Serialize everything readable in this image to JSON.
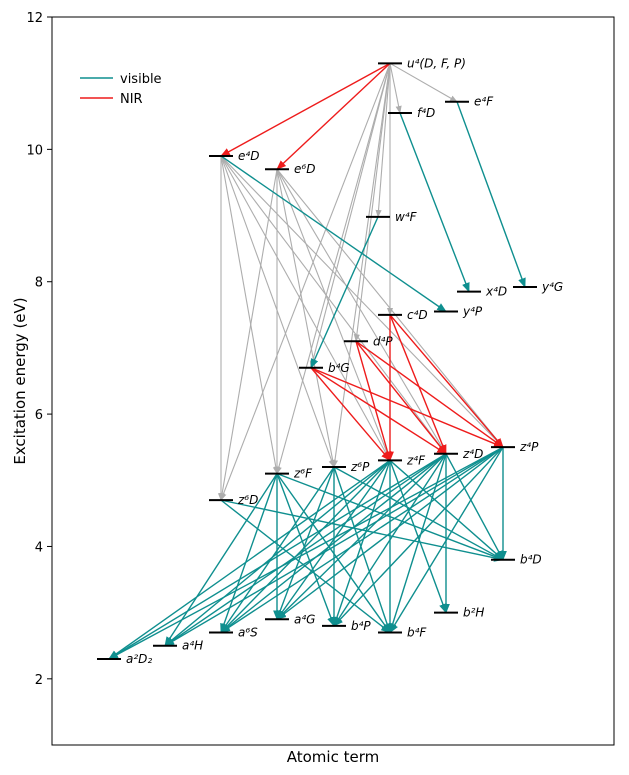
{
  "chart_data": {
    "type": "energy-level diagram",
    "xlabel": "Atomic term",
    "ylabel": "Excitation energy (eV)",
    "ylim": [
      1,
      12
    ],
    "yticks": [
      "2",
      "4",
      "6",
      "8",
      "10",
      "12"
    ],
    "legend": {
      "placement": "top-left",
      "entries": [
        {
          "label": "visible",
          "color": "#0f8f8f"
        },
        {
          "label": "NIR",
          "color": "#ee1c1c"
        }
      ]
    },
    "colors": {
      "visible": "#0f8f8f",
      "NIR": "#ee1c1c",
      "other": "#adadad",
      "level": "#000000"
    },
    "levels": [
      {
        "id": "u4DFP",
        "label": "u⁴(D, F, P)",
        "energy": 11.3
      },
      {
        "id": "e4F",
        "label": "e⁴F",
        "energy": 10.72
      },
      {
        "id": "f4D",
        "label": "f⁴D",
        "energy": 10.55
      },
      {
        "id": "e4D",
        "label": "e⁴D",
        "energy": 9.9
      },
      {
        "id": "e6D",
        "label": "e⁶D",
        "energy": 9.7
      },
      {
        "id": "w4F",
        "label": "w⁴F",
        "energy": 8.98
      },
      {
        "id": "y4G",
        "label": "y⁴G",
        "energy": 7.92
      },
      {
        "id": "x4D",
        "label": "x⁴D",
        "energy": 7.85
      },
      {
        "id": "y4P",
        "label": "y⁴P",
        "energy": 7.55
      },
      {
        "id": "c4D",
        "label": "c⁴D",
        "energy": 7.5
      },
      {
        "id": "d4P",
        "label": "d⁴P",
        "energy": 7.1
      },
      {
        "id": "b4G",
        "label": "b⁴G",
        "energy": 6.7
      },
      {
        "id": "z4P",
        "label": "z⁴P",
        "energy": 5.5
      },
      {
        "id": "z4D",
        "label": "z⁴D",
        "energy": 5.4
      },
      {
        "id": "z4F",
        "label": "z⁴F",
        "energy": 5.3
      },
      {
        "id": "z6P",
        "label": "z⁶P",
        "energy": 5.2
      },
      {
        "id": "z6F",
        "label": "z⁶F",
        "energy": 5.1
      },
      {
        "id": "z6D",
        "label": "z⁶D",
        "energy": 4.7
      },
      {
        "id": "b4D",
        "label": "b⁴D",
        "energy": 3.8
      },
      {
        "id": "b2H",
        "label": "b²H",
        "energy": 3.0
      },
      {
        "id": "a4G",
        "label": "a⁴G",
        "energy": 2.9
      },
      {
        "id": "b4P",
        "label": "b⁴P",
        "energy": 2.8
      },
      {
        "id": "b4F",
        "label": "b⁴F",
        "energy": 2.7
      },
      {
        "id": "a6S",
        "label": "a⁶S",
        "energy": 2.7
      },
      {
        "id": "a4H",
        "label": "a⁴H",
        "energy": 2.5
      },
      {
        "id": "a2D2",
        "label": "a²D₂",
        "energy": 2.3
      }
    ],
    "transitions": [
      {
        "from": "u4DFP",
        "to": "e4D",
        "kind": "NIR"
      },
      {
        "from": "u4DFP",
        "to": "e6D",
        "kind": "NIR"
      },
      {
        "from": "u4DFP",
        "to": "e4F",
        "kind": "other"
      },
      {
        "from": "u4DFP",
        "to": "f4D",
        "kind": "other"
      },
      {
        "from": "u4DFP",
        "to": "w4F",
        "kind": "other"
      },
      {
        "from": "u4DFP",
        "to": "c4D",
        "kind": "other"
      },
      {
        "from": "u4DFP",
        "to": "d4P",
        "kind": "other"
      },
      {
        "from": "u4DFP",
        "to": "b4G",
        "kind": "other"
      },
      {
        "from": "u4DFP",
        "to": "z6F",
        "kind": "other"
      },
      {
        "from": "u4DFP",
        "to": "z6P",
        "kind": "other"
      },
      {
        "from": "u4DFP",
        "to": "z6D",
        "kind": "other"
      },
      {
        "from": "e4F",
        "to": "y4G",
        "kind": "visible"
      },
      {
        "from": "f4D",
        "to": "x4D",
        "kind": "visible"
      },
      {
        "from": "e4D",
        "to": "y4P",
        "kind": "visible"
      },
      {
        "from": "e4D",
        "to": "z6D",
        "kind": "other"
      },
      {
        "from": "e4D",
        "to": "z6F",
        "kind": "other"
      },
      {
        "from": "e4D",
        "to": "z6P",
        "kind": "other"
      },
      {
        "from": "e4D",
        "to": "z4F",
        "kind": "other"
      },
      {
        "from": "e4D",
        "to": "z4D",
        "kind": "other"
      },
      {
        "from": "e4D",
        "to": "z4P",
        "kind": "other"
      },
      {
        "from": "e6D",
        "to": "z6D",
        "kind": "other"
      },
      {
        "from": "e6D",
        "to": "z6F",
        "kind": "other"
      },
      {
        "from": "e6D",
        "to": "z6P",
        "kind": "other"
      },
      {
        "from": "e6D",
        "to": "z4F",
        "kind": "other"
      },
      {
        "from": "e6D",
        "to": "z4D",
        "kind": "other"
      },
      {
        "from": "e6D",
        "to": "z4P",
        "kind": "other"
      },
      {
        "from": "w4F",
        "to": "b4G",
        "kind": "visible"
      },
      {
        "from": "c4D",
        "to": "z4F",
        "kind": "NIR"
      },
      {
        "from": "c4D",
        "to": "z4D",
        "kind": "NIR"
      },
      {
        "from": "c4D",
        "to": "z4P",
        "kind": "NIR"
      },
      {
        "from": "d4P",
        "to": "z4F",
        "kind": "NIR"
      },
      {
        "from": "d4P",
        "to": "z4D",
        "kind": "NIR"
      },
      {
        "from": "d4P",
        "to": "z4P",
        "kind": "NIR"
      },
      {
        "from": "b4G",
        "to": "z4F",
        "kind": "NIR"
      },
      {
        "from": "b4G",
        "to": "z4D",
        "kind": "NIR"
      },
      {
        "from": "b4G",
        "to": "z4P",
        "kind": "NIR"
      },
      {
        "from": "z4P",
        "to": "b4D",
        "kind": "visible"
      },
      {
        "from": "z4P",
        "to": "b4P",
        "kind": "visible"
      },
      {
        "from": "z4P",
        "to": "b4F",
        "kind": "visible"
      },
      {
        "from": "z4P",
        "to": "a4G",
        "kind": "visible"
      },
      {
        "from": "z4P",
        "to": "a6S",
        "kind": "visible"
      },
      {
        "from": "z4P",
        "to": "a4H",
        "kind": "visible"
      },
      {
        "from": "z4P",
        "to": "a2D2",
        "kind": "visible"
      },
      {
        "from": "z4D",
        "to": "b4D",
        "kind": "visible"
      },
      {
        "from": "z4D",
        "to": "b2H",
        "kind": "visible"
      },
      {
        "from": "z4D",
        "to": "b4F",
        "kind": "visible"
      },
      {
        "from": "z4D",
        "to": "b4P",
        "kind": "visible"
      },
      {
        "from": "z4D",
        "to": "a4G",
        "kind": "visible"
      },
      {
        "from": "z4D",
        "to": "a6S",
        "kind": "visible"
      },
      {
        "from": "z4D",
        "to": "a4H",
        "kind": "visible"
      },
      {
        "from": "z4D",
        "to": "a2D2",
        "kind": "visible"
      },
      {
        "from": "z4F",
        "to": "b4D",
        "kind": "visible"
      },
      {
        "from": "z4F",
        "to": "b2H",
        "kind": "visible"
      },
      {
        "from": "z4F",
        "to": "b4F",
        "kind": "visible"
      },
      {
        "from": "z4F",
        "to": "b4P",
        "kind": "visible"
      },
      {
        "from": "z4F",
        "to": "a4G",
        "kind": "visible"
      },
      {
        "from": "z4F",
        "to": "a6S",
        "kind": "visible"
      },
      {
        "from": "z4F",
        "to": "a4H",
        "kind": "visible"
      },
      {
        "from": "z4F",
        "to": "a2D2",
        "kind": "visible"
      },
      {
        "from": "z6P",
        "to": "b4F",
        "kind": "visible"
      },
      {
        "from": "z6P",
        "to": "b4P",
        "kind": "visible"
      },
      {
        "from": "z6P",
        "to": "a4G",
        "kind": "visible"
      },
      {
        "from": "z6P",
        "to": "a6S",
        "kind": "visible"
      },
      {
        "from": "z6P",
        "to": "b4D",
        "kind": "visible"
      },
      {
        "from": "z6F",
        "to": "b4F",
        "kind": "visible"
      },
      {
        "from": "z6F",
        "to": "b4P",
        "kind": "visible"
      },
      {
        "from": "z6F",
        "to": "a4G",
        "kind": "visible"
      },
      {
        "from": "z6F",
        "to": "a6S",
        "kind": "visible"
      },
      {
        "from": "z6F",
        "to": "a4H",
        "kind": "visible"
      },
      {
        "from": "z6F",
        "to": "b4D",
        "kind": "visible"
      },
      {
        "from": "z6D",
        "to": "b4D",
        "kind": "visible"
      },
      {
        "from": "z6D",
        "to": "b4F",
        "kind": "visible"
      }
    ]
  }
}
